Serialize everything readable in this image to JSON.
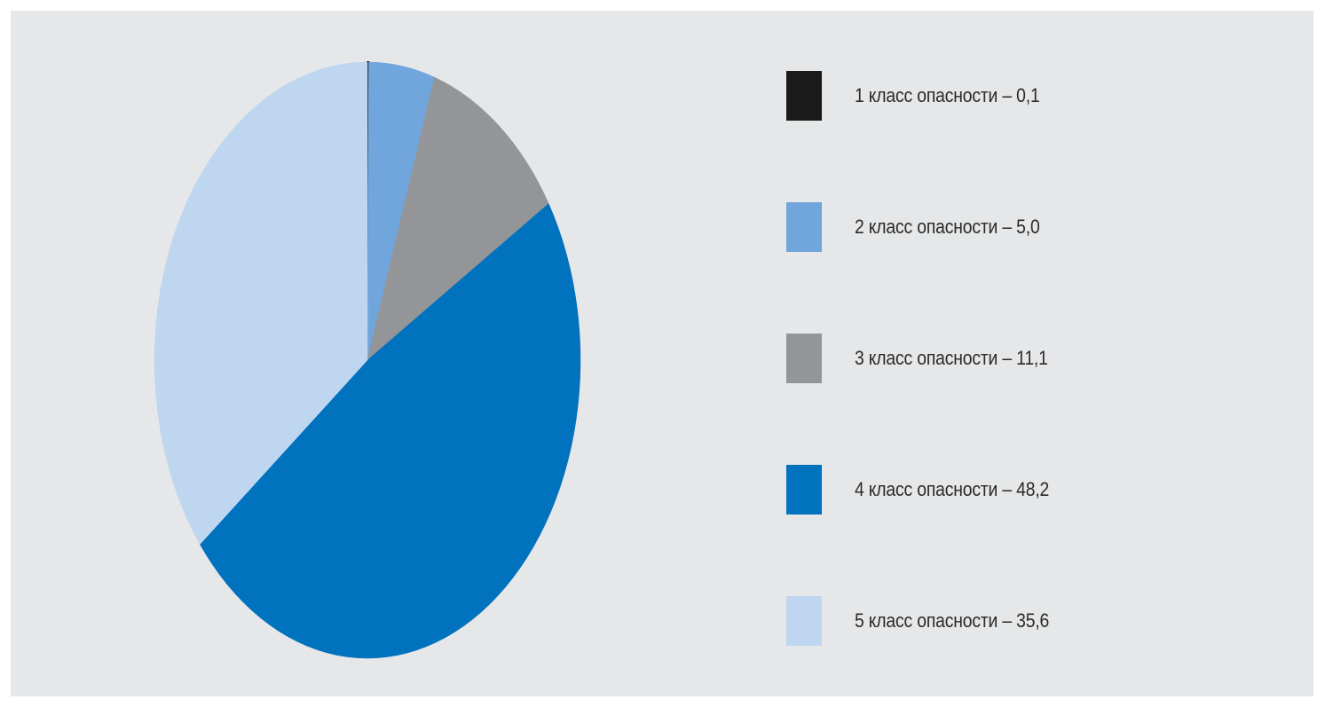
{
  "chart_data": {
    "type": "pie",
    "title": "",
    "start_angle_deg": 0,
    "direction": "clockwise",
    "legend_position": "right",
    "slices": [
      {
        "label": "1 класс опасности – 0,1",
        "value": 0.1,
        "color": "#1a1a1a"
      },
      {
        "label": "2 класс опасности – 5,0",
        "value": 5.0,
        "color": "#71a6dc"
      },
      {
        "label": "3 класс опасности – 11,1",
        "value": 11.1,
        "color": "#939598"
      },
      {
        "label": "4 класс опасности – 48,2",
        "value": 48.2,
        "color": "#0072be"
      },
      {
        "label": "5 класс опасности – 35,6",
        "value": 35.6,
        "color": "#bed6f0"
      }
    ]
  },
  "colors": {
    "panel_background": "#e6e7e8",
    "page_background": "#ffffff"
  }
}
